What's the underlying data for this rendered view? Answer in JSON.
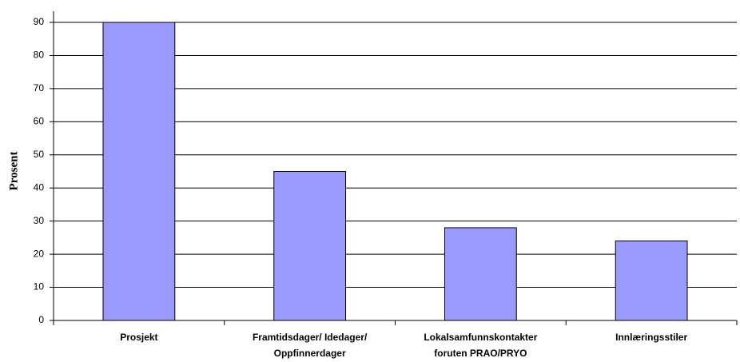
{
  "chart_data": {
    "type": "bar",
    "y_label": "Prosent",
    "categories": [
      [
        "Prosjekt"
      ],
      [
        "Framtidsdager/ Idedager/",
        "Oppfinnerdager"
      ],
      [
        "Lokalsamfunnskontakter",
        "foruten PRAO/PRYO"
      ],
      [
        "Innlæringsstiler"
      ]
    ],
    "values": [
      90,
      45,
      28,
      24
    ],
    "color": "#9999ff",
    "ylim": [
      0,
      90
    ],
    "yticks": [
      0,
      10,
      20,
      30,
      40,
      50,
      60,
      70,
      80,
      90
    ],
    "grid": true
  }
}
